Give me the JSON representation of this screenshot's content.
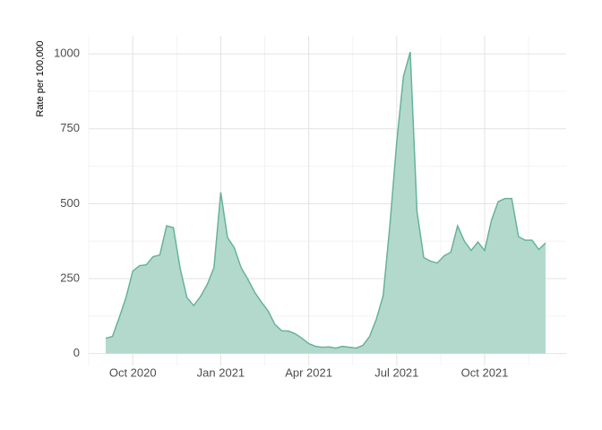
{
  "chart_data": {
    "type": "area",
    "y_label": "Rate per 100,000",
    "categories": [
      null,
      null,
      null,
      null,
      "Oct 2020",
      null,
      null,
      null,
      null,
      null,
      null,
      null,
      null,
      null,
      null,
      null,
      null,
      "Jan 2021",
      null,
      null,
      null,
      null,
      null,
      null,
      null,
      null,
      null,
      null,
      null,
      null,
      "Apr 2021",
      null,
      null,
      null,
      null,
      null,
      null,
      null,
      null,
      null,
      null,
      null,
      null,
      "Jul 2021",
      null,
      null,
      null,
      null,
      null,
      null,
      null,
      null,
      null,
      null,
      null,
      null,
      "Oct 2021",
      null,
      null,
      null,
      null,
      null,
      null,
      null,
      null,
      null
    ],
    "values": [
      51,
      57,
      120,
      187,
      275,
      293,
      296,
      323,
      329,
      426,
      420,
      284,
      187,
      160,
      190,
      230,
      287,
      538,
      387,
      353,
      287,
      248,
      205,
      172,
      142,
      97,
      76,
      75,
      66,
      51,
      33,
      24,
      21,
      22,
      18,
      24,
      21,
      18,
      27,
      57,
      115,
      193,
      429,
      704,
      925,
      1006,
      474,
      320,
      308,
      302,
      326,
      338,
      426,
      375,
      344,
      372,
      344,
      444,
      507,
      517,
      517,
      390,
      378,
      378,
      347,
      369
    ],
    "color": "#66b39a",
    "fill": "#b3d9cd",
    "ylim": [
      -40,
      1060
    ],
    "yticks": [
      0,
      250,
      500,
      750,
      1000
    ],
    "grid": true
  }
}
